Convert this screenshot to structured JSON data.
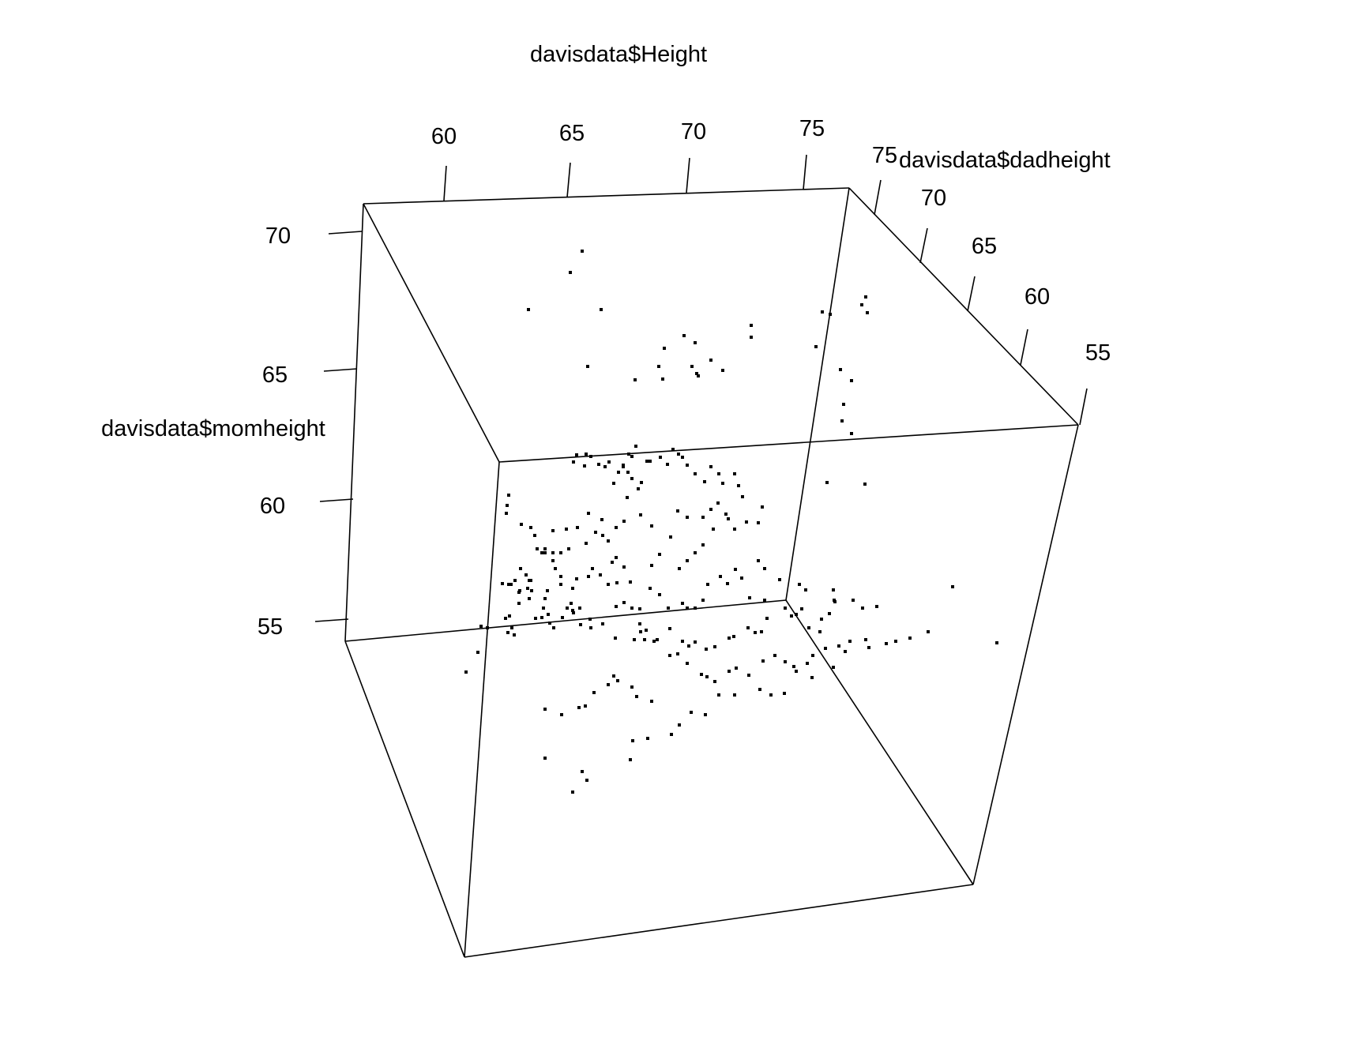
{
  "chart_data": {
    "type": "scatter",
    "projection": "3d",
    "title": "",
    "x_axis": {
      "label": "davisdata$Height",
      "ticks": [
        "60",
        "65",
        "70",
        "75"
      ],
      "range": [
        57,
        76
      ]
    },
    "y_axis": {
      "label": "davisdata$dadheight",
      "ticks": [
        "75",
        "70",
        "65",
        "60",
        "55"
      ],
      "range": [
        55,
        76
      ]
    },
    "z_axis": {
      "label": "davisdata$momheight",
      "ticks": [
        "70",
        "65",
        "60",
        "55"
      ],
      "range": [
        54,
        71
      ]
    },
    "grid": false,
    "legend": "none",
    "marker_color": "#000000",
    "line_color": "#000000",
    "points_screen_estimate": [
      [
        737,
        318
      ],
      [
        722,
        345
      ],
      [
        669,
        392
      ],
      [
        761,
        392
      ],
      [
        841,
        441
      ],
      [
        744,
        464
      ],
      [
        834,
        464
      ],
      [
        876,
        464
      ],
      [
        882,
        473
      ],
      [
        900,
        456
      ],
      [
        866,
        425
      ],
      [
        880,
        434
      ],
      [
        804,
        481
      ],
      [
        884,
        476
      ],
      [
        915,
        469
      ],
      [
        839,
        480
      ],
      [
        951,
        427
      ],
      [
        951,
        412
      ],
      [
        1033,
        439
      ],
      [
        1091,
        386
      ],
      [
        1098,
        396
      ],
      [
        1096,
        376
      ],
      [
        1041,
        395
      ],
      [
        1051,
        398
      ],
      [
        1078,
        482
      ],
      [
        1068,
        512
      ],
      [
        1066,
        533
      ],
      [
        1078,
        549
      ],
      [
        1064,
        468
      ],
      [
        1047,
        611
      ],
      [
        1095,
        613
      ],
      [
        796,
        575
      ],
      [
        805,
        565
      ],
      [
        800,
        578
      ],
      [
        726,
        585
      ],
      [
        789,
        591
      ],
      [
        771,
        585
      ],
      [
        748,
        578
      ],
      [
        740,
        590
      ],
      [
        730,
        576
      ],
      [
        742,
        575
      ],
      [
        758,
        588
      ],
      [
        766,
        591
      ],
      [
        783,
        598
      ],
      [
        789,
        589
      ],
      [
        795,
        598
      ],
      [
        800,
        606
      ],
      [
        777,
        612
      ],
      [
        808,
        619
      ],
      [
        794,
        630
      ],
      [
        812,
        611
      ],
      [
        819,
        584
      ],
      [
        823,
        584
      ],
      [
        836,
        579
      ],
      [
        845,
        588
      ],
      [
        852,
        569
      ],
      [
        859,
        575
      ],
      [
        864,
        579
      ],
      [
        870,
        589
      ],
      [
        880,
        600
      ],
      [
        892,
        610
      ],
      [
        900,
        591
      ],
      [
        910,
        600
      ],
      [
        915,
        612
      ],
      [
        930,
        600
      ],
      [
        935,
        615
      ],
      [
        940,
        629
      ],
      [
        965,
        642
      ],
      [
        960,
        662
      ],
      [
        945,
        661
      ],
      [
        922,
        657
      ],
      [
        909,
        637
      ],
      [
        900,
        645
      ],
      [
        890,
        655
      ],
      [
        870,
        655
      ],
      [
        858,
        647
      ],
      [
        849,
        680
      ],
      [
        825,
        666
      ],
      [
        811,
        652
      ],
      [
        790,
        660
      ],
      [
        780,
        668
      ],
      [
        762,
        658
      ],
      [
        745,
        650
      ],
      [
        731,
        668
      ],
      [
        717,
        670
      ],
      [
        700,
        672
      ],
      [
        690,
        695
      ],
      [
        686,
        700
      ],
      [
        700,
        700
      ],
      [
        710,
        700
      ],
      [
        720,
        695
      ],
      [
        742,
        688
      ],
      [
        754,
        674
      ],
      [
        763,
        678
      ],
      [
        770,
        685
      ],
      [
        780,
        706
      ],
      [
        790,
        718
      ],
      [
        798,
        737
      ],
      [
        781,
        738
      ],
      [
        775,
        712
      ],
      [
        760,
        728
      ],
      [
        750,
        720
      ],
      [
        745,
        730
      ],
      [
        730,
        733
      ],
      [
        725,
        745
      ],
      [
        710,
        730
      ],
      [
        693,
        748
      ],
      [
        670,
        735
      ],
      [
        668,
        745
      ],
      [
        657,
        750
      ],
      [
        647,
        740
      ],
      [
        644,
        627
      ],
      [
        642,
        640
      ],
      [
        641,
        650
      ],
      [
        660,
        664
      ],
      [
        672,
        668
      ],
      [
        677,
        678
      ],
      [
        680,
        695
      ],
      [
        690,
        700
      ],
      [
        700,
        710
      ],
      [
        703,
        720
      ],
      [
        710,
        740
      ],
      [
        718,
        770
      ],
      [
        726,
        776
      ],
      [
        734,
        770
      ],
      [
        747,
        784
      ],
      [
        770,
        740
      ],
      [
        780,
        768
      ],
      [
        790,
        763
      ],
      [
        800,
        770
      ],
      [
        810,
        771
      ],
      [
        823,
        745
      ],
      [
        835,
        753
      ],
      [
        846,
        770
      ],
      [
        864,
        764
      ],
      [
        870,
        770
      ],
      [
        880,
        770
      ],
      [
        890,
        760
      ],
      [
        896,
        740
      ],
      [
        912,
        730
      ],
      [
        921,
        739
      ],
      [
        931,
        721
      ],
      [
        939,
        732
      ],
      [
        949,
        757
      ],
      [
        968,
        720
      ],
      [
        987,
        734
      ],
      [
        1020,
        747
      ],
      [
        1012,
        740
      ],
      [
        960,
        710
      ],
      [
        930,
        670
      ],
      [
        919,
        651
      ],
      [
        903,
        670
      ],
      [
        890,
        690
      ],
      [
        880,
        700
      ],
      [
        870,
        710
      ],
      [
        860,
        720
      ],
      [
        835,
        702
      ],
      [
        825,
        716
      ],
      [
        810,
        790
      ],
      [
        816,
        810
      ],
      [
        832,
        810
      ],
      [
        848,
        796
      ],
      [
        864,
        812
      ],
      [
        872,
        818
      ],
      [
        880,
        813
      ],
      [
        894,
        822
      ],
      [
        905,
        819
      ],
      [
        923,
        808
      ],
      [
        929,
        806
      ],
      [
        947,
        795
      ],
      [
        956,
        801
      ],
      [
        964,
        800
      ],
      [
        971,
        783
      ],
      [
        968,
        760
      ],
      [
        994,
        770
      ],
      [
        1002,
        780
      ],
      [
        1008,
        778
      ],
      [
        1015,
        771
      ],
      [
        1024,
        795
      ],
      [
        1038,
        800
      ],
      [
        1040,
        784
      ],
      [
        1050,
        777
      ],
      [
        1057,
        762
      ],
      [
        1055,
        747
      ],
      [
        1056,
        760
      ],
      [
        1080,
        760
      ],
      [
        1092,
        770
      ],
      [
        1110,
        768
      ],
      [
        725,
        1003
      ],
      [
        690,
        898
      ],
      [
        640,
        783
      ],
      [
        645,
        780
      ],
      [
        605,
        826
      ],
      [
        590,
        851
      ],
      [
        609,
        793
      ],
      [
        617,
        795
      ],
      [
        643,
        801
      ],
      [
        651,
        804
      ],
      [
        648,
        795
      ],
      [
        678,
        783
      ],
      [
        686,
        782
      ],
      [
        701,
        795
      ],
      [
        712,
        782
      ],
      [
        725,
        773
      ],
      [
        723,
        764
      ],
      [
        690,
        758
      ],
      [
        673,
        748
      ],
      [
        672,
        735
      ],
      [
        658,
        748
      ],
      [
        666,
        728
      ],
      [
        659,
        720
      ],
      [
        657,
        764
      ],
      [
        636,
        739
      ],
      [
        644,
        740
      ],
      [
        652,
        735
      ],
      [
        670,
        758
      ],
      [
        688,
        770
      ],
      [
        694,
        778
      ],
      [
        696,
        789
      ],
      [
        735,
        791
      ],
      [
        748,
        795
      ],
      [
        763,
        790
      ],
      [
        779,
        808
      ],
      [
        803,
        810
      ],
      [
        811,
        800
      ],
      [
        818,
        798
      ],
      [
        828,
        812
      ],
      [
        848,
        830
      ],
      [
        858,
        828
      ],
      [
        870,
        840
      ],
      [
        888,
        854
      ],
      [
        895,
        857
      ],
      [
        905,
        863
      ],
      [
        923,
        850
      ],
      [
        932,
        846
      ],
      [
        948,
        855
      ],
      [
        966,
        837
      ],
      [
        981,
        830
      ],
      [
        994,
        838
      ],
      [
        1005,
        844
      ],
      [
        1022,
        840
      ],
      [
        1029,
        830
      ],
      [
        1045,
        821
      ],
      [
        1062,
        818
      ],
      [
        1076,
        812
      ],
      [
        1096,
        810
      ],
      [
        1100,
        820
      ],
      [
        1122,
        815
      ],
      [
        1134,
        812
      ],
      [
        1152,
        808
      ],
      [
        1175,
        800
      ],
      [
        1206,
        743
      ],
      [
        1262,
        814
      ],
      [
        1070,
        825
      ],
      [
        1055,
        845
      ],
      [
        1028,
        858
      ],
      [
        1008,
        850
      ],
      [
        993,
        878
      ],
      [
        976,
        880
      ],
      [
        962,
        873
      ],
      [
        930,
        880
      ],
      [
        910,
        880
      ],
      [
        893,
        905
      ],
      [
        875,
        902
      ],
      [
        860,
        918
      ],
      [
        850,
        930
      ],
      [
        820,
        935
      ],
      [
        801,
        938
      ],
      [
        798,
        962
      ],
      [
        743,
        988
      ],
      [
        737,
        977
      ],
      [
        690,
        960
      ],
      [
        711,
        905
      ],
      [
        733,
        896
      ],
      [
        741,
        894
      ],
      [
        752,
        877
      ],
      [
        770,
        867
      ],
      [
        777,
        856
      ],
      [
        782,
        862
      ],
      [
        800,
        870
      ],
      [
        806,
        882
      ],
      [
        825,
        888
      ]
    ]
  }
}
